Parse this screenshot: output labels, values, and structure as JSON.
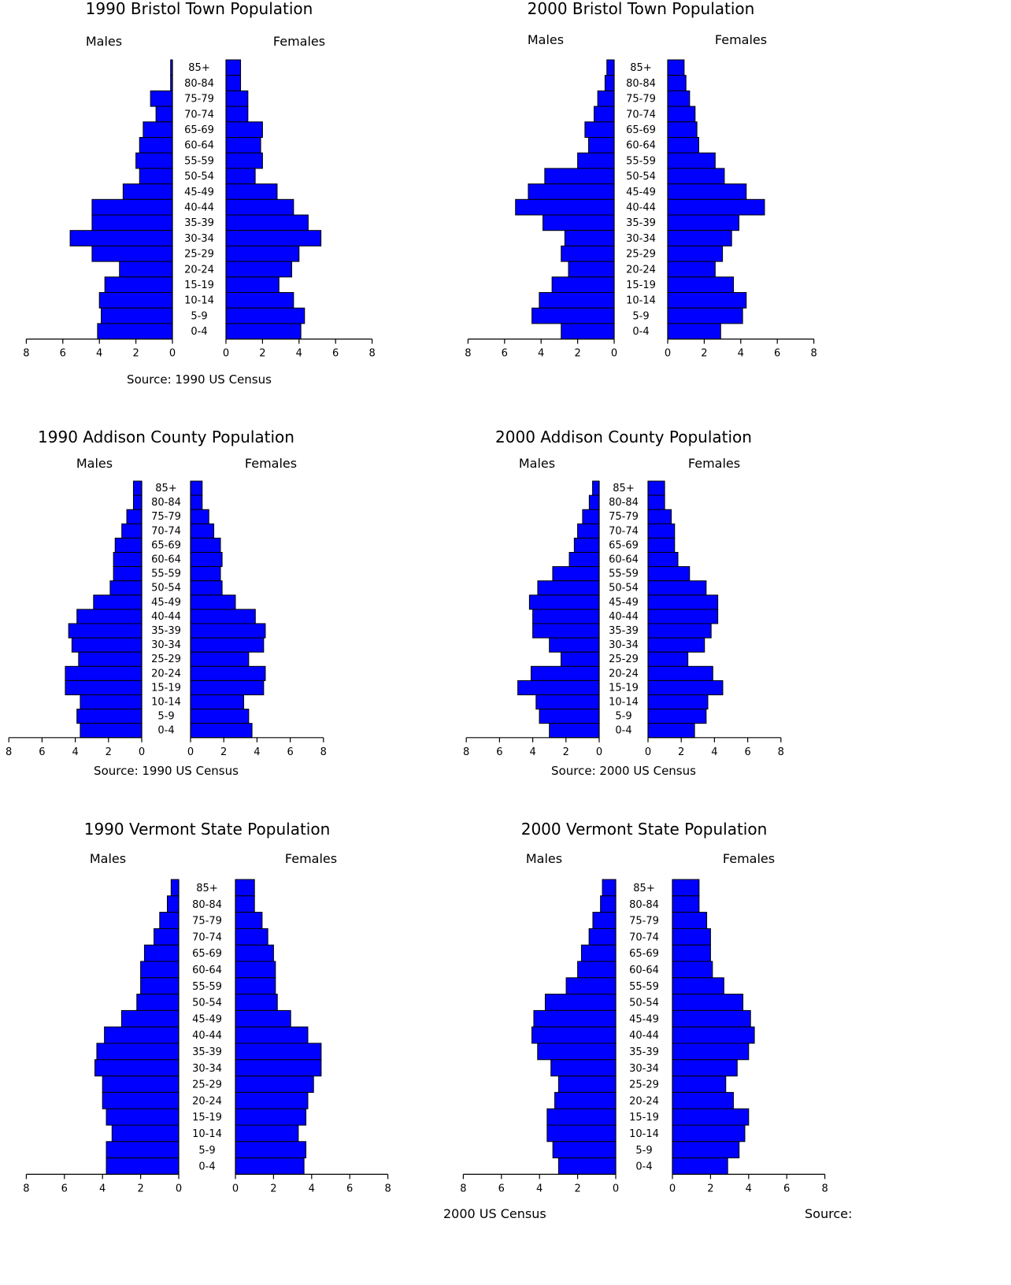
{
  "colors": {
    "bar": "#0000ff",
    "outline": "#000000"
  },
  "age_groups_top_down": [
    "85+",
    "80-84",
    "75-79",
    "70-74",
    "65-69",
    "60-64",
    "55-59",
    "50-54",
    "45-49",
    "40-44",
    "35-39",
    "30-34",
    "25-29",
    "20-24",
    "15-19",
    "10-14",
    "5-9",
    "0-4"
  ],
  "chart_data": [
    {
      "type": "bar",
      "orientation": "population-pyramid",
      "title": "1990 Bristol Town Population",
      "male_label": "Males",
      "female_label": "Females",
      "source": "Source: 1990 US Census",
      "xlim": [
        0,
        8
      ],
      "xticks": [
        "8",
        "6",
        "4",
        "2",
        "0"
      ],
      "male_values": [
        0.1,
        0.1,
        1.2,
        0.9,
        1.6,
        1.8,
        2.0,
        1.8,
        2.7,
        4.4,
        4.4,
        5.6,
        4.4,
        2.9,
        3.7,
        4.0,
        3.9,
        4.1
      ],
      "female_values": [
        0.8,
        0.8,
        1.2,
        1.2,
        2.0,
        1.9,
        2.0,
        1.6,
        2.8,
        3.7,
        4.5,
        5.2,
        4.0,
        3.6,
        2.9,
        3.7,
        4.3,
        4.1
      ]
    },
    {
      "type": "bar",
      "orientation": "population-pyramid",
      "title": "2000 Bristol Town Population",
      "male_label": "Males",
      "female_label": "Females",
      "source": "",
      "xlim": [
        0,
        8
      ],
      "xticks": [
        "8",
        "6",
        "4",
        "2",
        "0"
      ],
      "male_values": [
        0.4,
        0.5,
        0.9,
        1.1,
        1.6,
        1.4,
        2.0,
        3.8,
        4.7,
        5.4,
        3.9,
        2.7,
        2.9,
        2.5,
        3.4,
        4.1,
        4.5,
        2.9
      ],
      "female_values": [
        0.9,
        1.0,
        1.2,
        1.5,
        1.6,
        1.7,
        2.6,
        3.1,
        4.3,
        5.3,
        3.9,
        3.5,
        3.0,
        2.6,
        3.6,
        4.3,
        4.1,
        2.9
      ]
    },
    {
      "type": "bar",
      "orientation": "population-pyramid",
      "title": "1990 Addison County Population",
      "male_label": "Males",
      "female_label": "Females",
      "source": "Source: 1990 US Census",
      "xlim": [
        0,
        8
      ],
      "xticks": [
        "8",
        "6",
        "4",
        "2",
        "0"
      ],
      "male_values": [
        0.5,
        0.5,
        0.9,
        1.2,
        1.6,
        1.7,
        1.7,
        1.9,
        2.9,
        3.9,
        4.4,
        4.2,
        3.8,
        4.6,
        4.6,
        3.7,
        3.9,
        3.7
      ],
      "female_values": [
        0.7,
        0.7,
        1.1,
        1.4,
        1.8,
        1.9,
        1.8,
        1.9,
        2.7,
        3.9,
        4.5,
        4.4,
        3.5,
        4.5,
        4.4,
        3.2,
        3.5,
        3.7
      ]
    },
    {
      "type": "bar",
      "orientation": "population-pyramid",
      "title": "2000 Addison County Population",
      "male_label": "Males",
      "female_label": "Females",
      "source": "Source: 2000 US Census",
      "xlim": [
        0,
        8
      ],
      "xticks": [
        "8",
        "6",
        "4",
        "2",
        "0"
      ],
      "male_values": [
        0.4,
        0.6,
        1.0,
        1.3,
        1.5,
        1.8,
        2.8,
        3.7,
        4.2,
        4.0,
        4.0,
        3.0,
        2.3,
        4.1,
        4.9,
        3.8,
        3.6,
        3.0
      ],
      "female_values": [
        1.0,
        1.0,
        1.4,
        1.6,
        1.6,
        1.8,
        2.5,
        3.5,
        4.2,
        4.2,
        3.8,
        3.4,
        2.4,
        3.9,
        4.5,
        3.6,
        3.5,
        2.8
      ]
    },
    {
      "type": "bar",
      "orientation": "population-pyramid",
      "title": "1990 Vermont State Population",
      "male_label": "Males",
      "female_label": "Females",
      "source": "",
      "xlim": [
        0,
        8
      ],
      "xticks": [
        "8",
        "6",
        "4",
        "2",
        "0"
      ],
      "male_values": [
        0.4,
        0.6,
        1.0,
        1.3,
        1.8,
        2.0,
        2.0,
        2.2,
        3.0,
        3.9,
        4.3,
        4.4,
        4.0,
        4.0,
        3.8,
        3.5,
        3.8,
        3.8
      ],
      "female_values": [
        1.0,
        1.0,
        1.4,
        1.7,
        2.0,
        2.1,
        2.1,
        2.2,
        2.9,
        3.8,
        4.5,
        4.5,
        4.1,
        3.8,
        3.7,
        3.3,
        3.7,
        3.6
      ]
    },
    {
      "type": "bar",
      "orientation": "population-pyramid",
      "title": "2000 Vermont State Population",
      "male_label": "Males",
      "female_label": "Females",
      "source": "",
      "xlim": [
        0,
        8
      ],
      "xticks": [
        "8",
        "6",
        "4",
        "2",
        "0"
      ],
      "male_values": [
        0.7,
        0.8,
        1.2,
        1.4,
        1.8,
        2.0,
        2.6,
        3.7,
        4.3,
        4.4,
        4.1,
        3.4,
        3.0,
        3.2,
        3.6,
        3.6,
        3.3,
        3.0
      ],
      "female_values": [
        1.4,
        1.4,
        1.8,
        2.0,
        2.0,
        2.1,
        2.7,
        3.7,
        4.1,
        4.3,
        4.0,
        3.4,
        2.8,
        3.2,
        4.0,
        3.8,
        3.5,
        2.9
      ]
    }
  ],
  "stray_text": {
    "vt2000_source": "2000 US Census",
    "vt2000_source_right": "Source:"
  }
}
